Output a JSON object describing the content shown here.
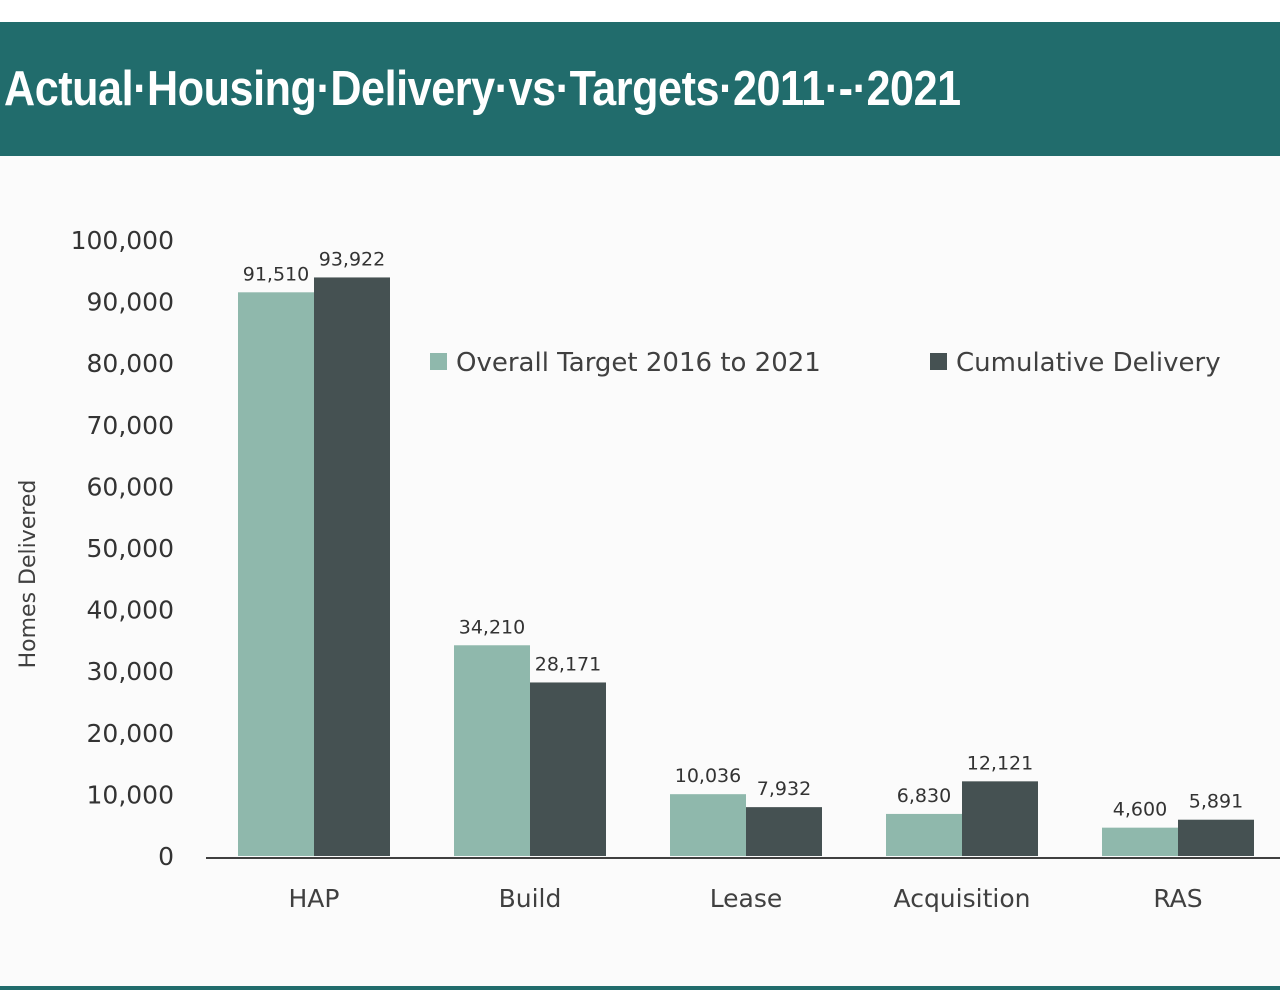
{
  "header": {
    "title": "Actual·Housing·Delivery·vs·Targets·2011·-·2021"
  },
  "colors": {
    "header_bg": "#216c6c",
    "bottom_rule": "#216c6c",
    "series_target": "#8fb8ac",
    "series_delivery": "#455152",
    "axis_line": "#404040"
  },
  "chart_data": {
    "type": "bar",
    "categories": [
      "HAP",
      "Build",
      "Lease",
      "Acquisition",
      "RAS"
    ],
    "series": [
      {
        "name": "Overall Target 2016 to 2021",
        "values": [
          91510,
          34210,
          10036,
          6830,
          4600
        ],
        "labels": [
          "91,510",
          "34,210",
          "10,036",
          "6,830",
          "4,600"
        ]
      },
      {
        "name": "Cumulative Delivery",
        "values": [
          93922,
          28171,
          7932,
          12121,
          5891
        ],
        "labels": [
          "93,922",
          "28,171",
          "7,932",
          "12,121",
          "5,891"
        ]
      }
    ],
    "ylabel": "Homes Delivered",
    "xlabel": "",
    "ylim": [
      0,
      100000
    ],
    "yticks": [
      0,
      10000,
      20000,
      30000,
      40000,
      50000,
      60000,
      70000,
      80000,
      90000,
      100000
    ],
    "ytick_labels": [
      "0",
      "10,000",
      "20,000",
      "30,000",
      "40,000",
      "50,000",
      "60,000",
      "70,000",
      "80,000",
      "90,000",
      "100,000"
    ],
    "grid": false,
    "legend_position": "top-right"
  }
}
